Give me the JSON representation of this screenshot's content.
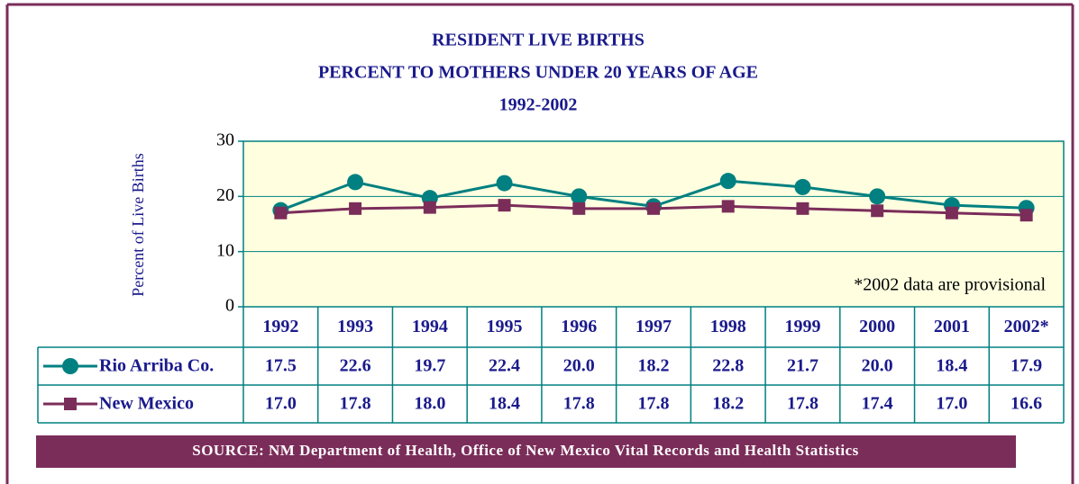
{
  "chart_data": {
    "type": "line",
    "title": [
      "RESIDENT LIVE BIRTHS",
      "PERCENT TO MOTHERS UNDER 20 YEARS OF AGE",
      "1992-2002"
    ],
    "y_label": "Percent of Live Births",
    "annotation": "*2002 data are provisional",
    "source": "SOURCE: NM Department of Health, Office of New Mexico Vital Records and Health Statistics",
    "categories": [
      "1992",
      "1993",
      "1994",
      "1995",
      "1996",
      "1997",
      "1998",
      "1999",
      "2000",
      "2001",
      "2002*"
    ],
    "series": [
      {
        "name": "Rio Arriba Co.",
        "color": "#008080",
        "marker": "circle",
        "values": [
          17.5,
          22.6,
          19.7,
          22.4,
          20,
          18.2,
          22.8,
          21.7,
          20,
          18.4,
          17.9
        ],
        "value_labels": [
          "17.5",
          "22.6",
          "19.7",
          "22.4",
          "20.0",
          "18.2",
          "22.8",
          "21.7",
          "20.0",
          "18.4",
          "17.9"
        ]
      },
      {
        "name": "New Mexico",
        "color": "#7b2d5a",
        "marker": "square",
        "values": [
          17,
          17.8,
          18,
          18.4,
          17.8,
          17.8,
          18.2,
          17.8,
          17.4,
          17,
          16.6
        ],
        "value_labels": [
          "17.0",
          "17.8",
          "18.0",
          "18.4",
          "17.8",
          "17.8",
          "18.2",
          "17.8",
          "17.4",
          "17.0",
          "16.6"
        ]
      }
    ],
    "ylim": [
      0,
      30
    ],
    "yticks": [
      0,
      10,
      20,
      30
    ],
    "grid": true
  }
}
